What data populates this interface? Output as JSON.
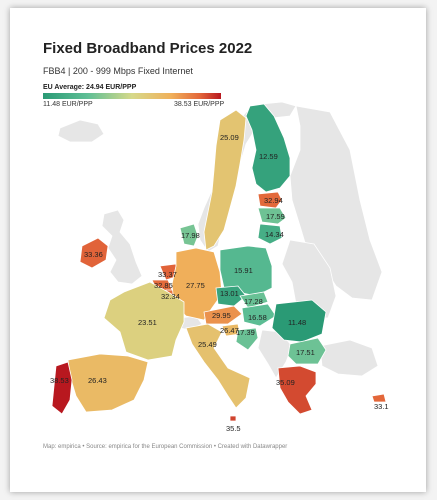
{
  "title": "Fixed Broadband Prices 2022",
  "subtitle": "FBB4 | 200 - 999 Mbps Fixed Internet",
  "legend": {
    "title": "EU Average: 24.94 EUR/PPP",
    "min_label": "11.48 EUR/PPP",
    "max_label": "38.53 EUR/PPP",
    "min": 11.48,
    "max": 38.53,
    "colors": [
      "#2a9a75",
      "#5fbf96",
      "#d6d98a",
      "#f0b05a",
      "#e3673a",
      "#b8181f"
    ]
  },
  "footer": "Map: empirica • Source: empirica for the European Commission • Created with Datawrapper",
  "regions": {
    "sweden": {
      "value": 25.09,
      "label": "25.09"
    },
    "finland": {
      "value": 12.59,
      "label": "12.59"
    },
    "estonia": {
      "value": 32.94,
      "label": "32.94"
    },
    "latvia": {
      "value": 17.59,
      "label": "17.59"
    },
    "lithuania": {
      "value": 14.34,
      "label": "14.34"
    },
    "denmark": {
      "value": 17.98,
      "label": "17.98"
    },
    "ireland": {
      "value": 33.36,
      "label": "33.36"
    },
    "netherlands": {
      "value": 33.37,
      "label": "33.37"
    },
    "belgium": {
      "value": 32.85,
      "label": "32.85"
    },
    "luxembourg": {
      "value": 32.34,
      "label": "32.34"
    },
    "germany": {
      "value": 27.75,
      "label": "27.75"
    },
    "poland": {
      "value": 15.91,
      "label": "15.91"
    },
    "czechia": {
      "value": 13.01,
      "label": "13.01"
    },
    "slovakia": {
      "value": 17.28,
      "label": "17.28"
    },
    "hungary": {
      "value": 16.58,
      "label": "16.58"
    },
    "romania": {
      "value": 11.48,
      "label": "11.48"
    },
    "austria": {
      "value": 29.95,
      "label": "29.95"
    },
    "slovenia": {
      "value": 26.47,
      "label": "26.47"
    },
    "croatia": {
      "value": 17.39,
      "label": "17.39"
    },
    "bulgaria": {
      "value": 17.51,
      "label": "17.51"
    },
    "france": {
      "value": 23.51,
      "label": "23.51"
    },
    "italy": {
      "value": 25.49,
      "label": "25.49"
    },
    "spain": {
      "value": 26.43,
      "label": "26.43"
    },
    "portugal": {
      "value": 38.53,
      "label": "38.53"
    },
    "greece": {
      "value": 35.09,
      "label": "35.09"
    },
    "cyprus": {
      "value": 33.1,
      "label": "33.1"
    },
    "malta": {
      "value": 35.5,
      "label": "35.5"
    }
  }
}
